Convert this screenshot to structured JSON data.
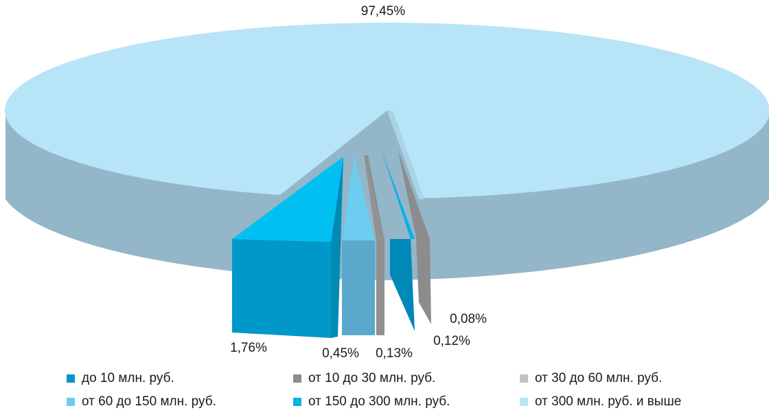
{
  "chart_data": {
    "type": "pie",
    "style": "3d-exploded",
    "slices": [
      {
        "label": "до 10 млн. руб.",
        "value": 1.76,
        "value_label": "1,76%",
        "color": "#0098c8"
      },
      {
        "label": "от 10 до 30 млн. руб.",
        "value": 0.08,
        "value_label": "0,08%",
        "color": "#8c8c8c"
      },
      {
        "label": "от 30 до 60 млн. руб.",
        "value": 0.13,
        "value_label": "0,13%",
        "color": "#c2c2c2"
      },
      {
        "label": "от 60 до 150 млн. руб.",
        "value": 0.45,
        "value_label": "0,45%",
        "color": "#6ccdf0"
      },
      {
        "label": "от 150 до 300 млн. руб.",
        "value": 0.12,
        "value_label": "0,12%",
        "color": "#00b2ea"
      },
      {
        "label": "от 300 млн. руб. и выше",
        "value": 97.45,
        "value_label": "97,45%",
        "color": "#b8e4f8"
      }
    ],
    "legend_position": "bottom"
  }
}
